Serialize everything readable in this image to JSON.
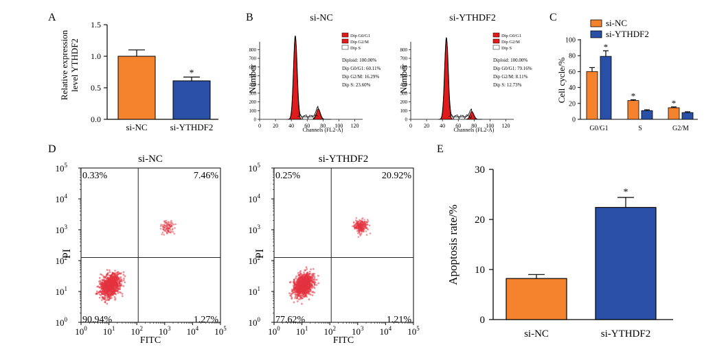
{
  "colors": {
    "orange": "#f5822d",
    "blue": "#2a4fa6",
    "red": "#e01b1b",
    "cloud": "#e3333f"
  },
  "panelA": {
    "letter": "A",
    "chart_data": {
      "type": "bar",
      "categories": [
        "si-NC",
        "si-YTHDF2"
      ],
      "values": [
        1.0,
        0.61
      ],
      "errors": [
        0.1,
        0.06
      ],
      "significance": [
        "",
        "*"
      ],
      "ylabel_line1": "Relative expression",
      "ylabel_line2": "level YTHDF2",
      "yticks": [
        "0.0",
        "0.5",
        "1.0",
        "1.5"
      ],
      "ylim": [
        0,
        1.5
      ]
    }
  },
  "panelB": {
    "letter": "B",
    "plots": [
      {
        "title": "si-NC",
        "ylabel": "Number",
        "xlabel": "Channels (FL2-A)",
        "xticks": [
          "0",
          "20",
          "40",
          "60",
          "80",
          "100",
          "120"
        ],
        "yticks": [
          "0",
          "100",
          "200",
          "300",
          "400",
          "500",
          "600",
          "700",
          "800"
        ],
        "legend": [
          "Dip G0/G1",
          "Dip G2/M",
          "Dip S"
        ],
        "stats": [
          "Diploid: 100.00%",
          "Dip G0/G1: 60.11%",
          "Dip G2/M: 16.29%",
          "Dip S: 23.60%"
        ],
        "chart_data": {
          "type": "area",
          "g1_peak": {
            "x": 45,
            "y": 960
          },
          "g2_peak": {
            "x": 74,
            "y": 120
          }
        }
      },
      {
        "title": "si-YTHDF2",
        "ylabel": "Number",
        "xlabel": "Channels (FL2-A)",
        "xticks": [
          "0",
          "20",
          "40",
          "60",
          "80",
          "100",
          "120"
        ],
        "yticks": [
          "0",
          "100",
          "200",
          "300",
          "400",
          "500",
          "600",
          "700",
          "800"
        ],
        "legend": [
          "Dip G0/G1",
          "Dip G2/M",
          "Dip S"
        ],
        "stats": [
          "Diploid: 100.00%",
          "Dip G0/G1: 79.16%",
          "Dip G2/M: 8.11%",
          "Dip S: 12.73%"
        ],
        "chart_data": {
          "type": "area",
          "g1_peak": {
            "x": 45,
            "y": 940
          },
          "g2_peak": {
            "x": 77,
            "y": 90
          }
        }
      }
    ]
  },
  "panelC": {
    "letter": "C",
    "legend": [
      "si-NC",
      "si-YTHDF2"
    ],
    "ylabel": "Cell cycle/%",
    "yticks": [
      "0",
      "20",
      "40",
      "60",
      "80",
      "100"
    ],
    "chart_data": {
      "type": "bar",
      "categories": [
        "G0/G1",
        "S",
        "G2/M"
      ],
      "series": [
        {
          "name": "si-NC",
          "values": [
            60.1,
            23.6,
            14.6
          ],
          "errors": [
            5,
            1,
            1
          ]
        },
        {
          "name": "si-YTHDF2",
          "values": [
            79.2,
            11.0,
            8.5
          ],
          "errors": [
            7,
            1,
            1
          ]
        }
      ],
      "significance": [
        "*",
        "*",
        "*"
      ],
      "ylim": [
        0,
        100
      ]
    }
  },
  "panelD": {
    "letter": "D",
    "plots": [
      {
        "title": "si-NC",
        "xlabel": "FITC",
        "ylabel": "PI",
        "quadrants": {
          "ul": "0.33%",
          "ur": "7.46%",
          "ll": "90.94%",
          "lr": "1.27%"
        },
        "chart_data": {
          "type": "scatter",
          "early_apoptotic_pct": 1.27,
          "late_apoptotic_pct": 7.46
        }
      },
      {
        "title": "si-YTHDF2",
        "xlabel": "FITC",
        "ylabel": "PI",
        "quadrants": {
          "ul": "0.25%",
          "ur": "20.92%",
          "ll": "77.62%",
          "lr": "1.21%"
        },
        "chart_data": {
          "type": "scatter",
          "early_apoptotic_pct": 1.21,
          "late_apoptotic_pct": 20.92
        }
      }
    ]
  },
  "panelE": {
    "letter": "E",
    "chart_data": {
      "type": "bar",
      "categories": [
        "si-NC",
        "si-YTHDF2"
      ],
      "values": [
        8.2,
        22.4
      ],
      "errors": [
        0.8,
        2.0
      ],
      "significance": [
        "",
        "*"
      ],
      "ylabel": "Apoptosis rate/%",
      "yticks": [
        "0",
        "10",
        "20",
        "30"
      ],
      "ylim": [
        0,
        30
      ]
    }
  }
}
